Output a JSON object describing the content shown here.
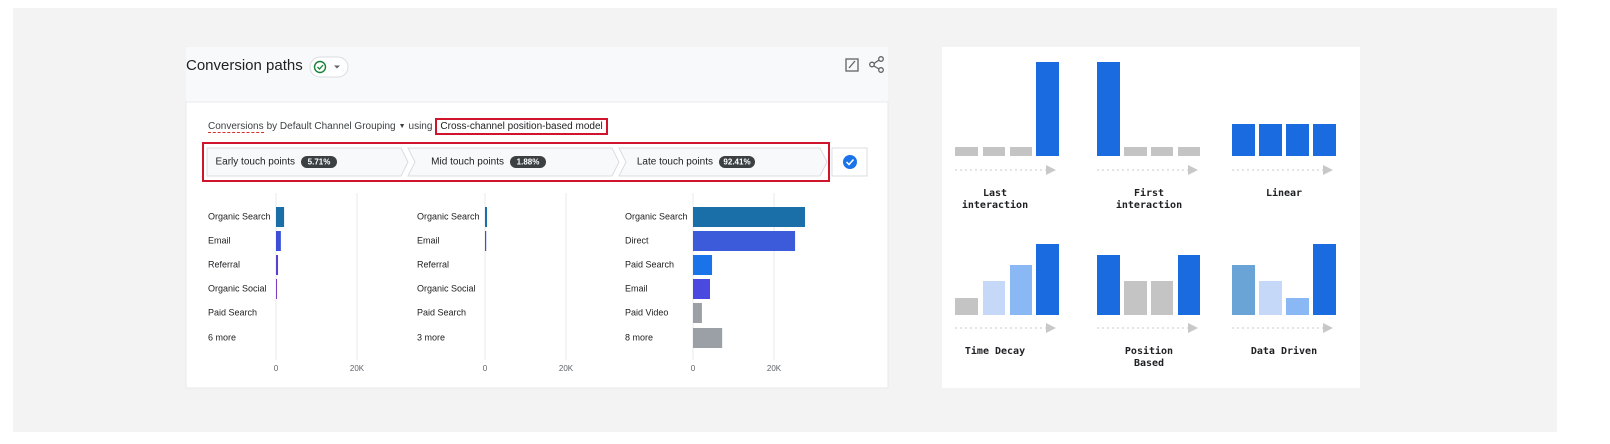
{
  "header": {
    "title": "Conversion paths"
  },
  "query": {
    "metric": "Conversions",
    "dimension": "by Default Channel Grouping",
    "connector": "using",
    "model": "Cross-channel position-based model"
  },
  "stages": [
    {
      "label": "Early touch points",
      "share": "5.71%"
    },
    {
      "label": "Mid touch points",
      "share": "1.88%"
    },
    {
      "label": "Late touch points",
      "share": "92.41%"
    }
  ],
  "chart_data": [
    {
      "type": "hbar",
      "categories": [
        "Organic Search",
        "Email",
        "Referral",
        "Organic Social",
        "Paid Search",
        "6 more"
      ],
      "values": [
        2000,
        1200,
        500,
        250,
        0,
        0
      ],
      "colors": [
        "#1a6fa8",
        "#3b4fd8",
        "#5b3fd0",
        "#7b3fc0",
        "#9aa0a6",
        "#9aa0a6"
      ],
      "xlim": [
        0,
        40000
      ],
      "xticks": [
        0,
        {
          "value": 20000,
          "label": "20K"
        }
      ],
      "grid": true
    },
    {
      "type": "hbar",
      "categories": [
        "Organic Search",
        "Email",
        "Referral",
        "Organic Social",
        "Paid Search",
        "3 more"
      ],
      "values": [
        500,
        300,
        0,
        0,
        0,
        0
      ],
      "colors": [
        "#1a6fa8",
        "#3b4fd8",
        "#5b3fd0",
        "#7b3fc0",
        "#9aa0a6",
        "#9aa0a6"
      ],
      "xlim": [
        0,
        40000
      ],
      "xticks": [
        0,
        {
          "value": 20000,
          "label": "20K"
        }
      ],
      "grid": true
    },
    {
      "type": "hbar",
      "categories": [
        "Organic Search",
        "Direct",
        "Paid Search",
        "Email",
        "Paid Video",
        "8 more"
      ],
      "values": [
        27650,
        25200,
        4700,
        4200,
        2200,
        7200
      ],
      "colors": [
        "#1a6fa8",
        "#3b5bdb",
        "#1a73e8",
        "#4a4ae0",
        "#9aa0a6",
        "#9aa0a6"
      ],
      "xlim": [
        0,
        40000
      ],
      "xticks": [
        0,
        {
          "value": 20000,
          "label": "20K"
        }
      ],
      "grid": true
    }
  ],
  "models": [
    {
      "label": "Last interaction"
    },
    {
      "label": "First interaction"
    },
    {
      "label": "Linear"
    },
    {
      "label": "Time Decay"
    },
    {
      "label": "Position Based"
    },
    {
      "label": "Data Driven"
    }
  ]
}
